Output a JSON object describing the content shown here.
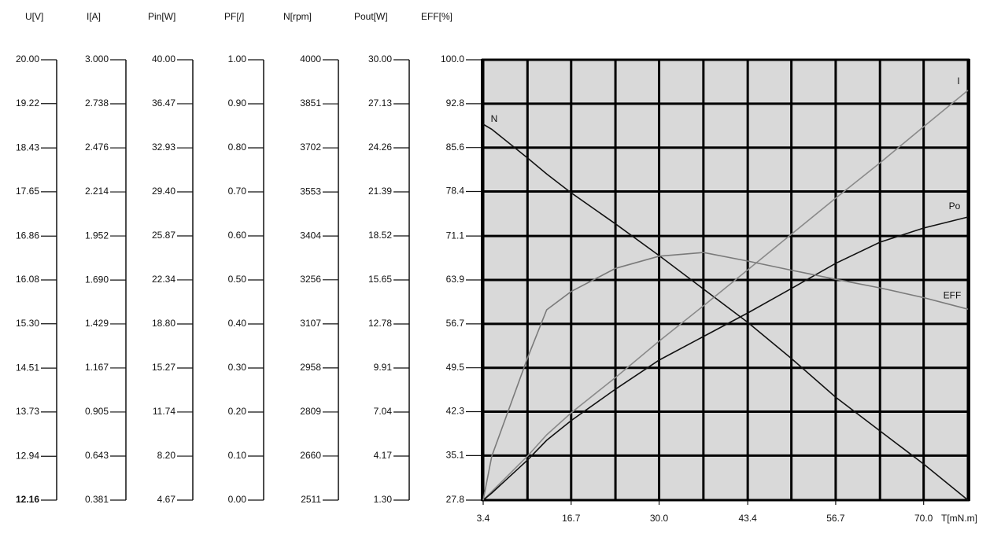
{
  "chart_data": {
    "type": "line",
    "xlabel": "T[mN.m]",
    "grid": true,
    "x": [
      3.4,
      4.7,
      10.1,
      13.0,
      16.7,
      23.4,
      30.0,
      36.7,
      43.4,
      50.0,
      56.7,
      63.4,
      70.0,
      76.7
    ],
    "xlim": [
      3.4,
      76.7
    ],
    "xticks": [
      3.4,
      16.7,
      {
        "value": 30,
        "label": "30.0"
      },
      43.4,
      56.7,
      {
        "value": 70,
        "label": "70.0"
      }
    ],
    "xgrid": [
      10.1,
      23.4,
      36.7,
      50.0,
      63.4,
      76.7
    ],
    "axes": [
      {
        "label": "U[V]",
        "ylim": [
          12.16,
          20
        ],
        "yticks": [
          {
            "value": 20,
            "label": "20.00"
          },
          19.22,
          18.43,
          17.65,
          16.86,
          16.08,
          {
            "value": 15.3,
            "label": "15.30"
          },
          14.51,
          13.73,
          12.94,
          12.16
        ]
      },
      {
        "label": "I[A]",
        "ylim": [
          0.381,
          3
        ],
        "yticks": [
          {
            "value": 3,
            "label": "3.000"
          },
          2.738,
          2.476,
          2.214,
          1.952,
          {
            "value": 1.69,
            "label": "1.690"
          },
          1.429,
          1.167,
          0.905,
          0.643,
          0.381
        ]
      },
      {
        "label": "Pin[W]",
        "ylim": [
          4.67,
          40
        ],
        "yticks": [
          {
            "value": 40,
            "label": "40.00"
          },
          36.47,
          32.93,
          {
            "value": 29.4,
            "label": "29.40"
          },
          25.87,
          22.34,
          {
            "value": 18.8,
            "label": "18.80"
          },
          15.27,
          11.74,
          {
            "value": 8.2,
            "label": "8.20"
          },
          4.67
        ]
      },
      {
        "label": "PF[/]",
        "ylim": [
          0,
          1
        ],
        "yticks": [
          {
            "value": 1,
            "label": "1.00"
          },
          {
            "value": 0.9,
            "label": "0.90"
          },
          {
            "value": 0.8,
            "label": "0.80"
          },
          {
            "value": 0.7,
            "label": "0.70"
          },
          {
            "value": 0.6,
            "label": "0.60"
          },
          {
            "value": 0.5,
            "label": "0.50"
          },
          {
            "value": 0.4,
            "label": "0.40"
          },
          {
            "value": 0.3,
            "label": "0.30"
          },
          {
            "value": 0.2,
            "label": "0.20"
          },
          {
            "value": 0.1,
            "label": "0.10"
          },
          {
            "value": 0,
            "label": "0.00"
          }
        ]
      },
      {
        "label": "N[rpm]",
        "ylim": [
          2511,
          4000
        ],
        "yticks": [
          4000,
          3851,
          3702,
          3553,
          3404,
          3256,
          3107,
          2958,
          2809,
          2660,
          2511
        ]
      },
      {
        "label": "Pout[W]",
        "ylim": [
          1.3,
          30
        ],
        "yticks": [
          {
            "value": 30,
            "label": "30.00"
          },
          27.13,
          24.26,
          21.39,
          18.52,
          15.65,
          12.78,
          9.91,
          7.04,
          4.17,
          {
            "value": 1.3,
            "label": "1.30"
          }
        ]
      },
      {
        "label": "EFF[%]",
        "ylim": [
          27.8,
          100
        ],
        "yticks": [
          {
            "value": 100,
            "label": "100.0"
          },
          92.8,
          85.6,
          78.4,
          71.1,
          63.9,
          56.7,
          49.5,
          42.3,
          35.1,
          27.8
        ]
      }
    ],
    "series": [
      {
        "name": "N",
        "color": "#111111",
        "axis": 4,
        "values": [
          3782,
          3765,
          3668,
          3614,
          3550,
          3445,
          3338,
          3225,
          3112,
          2990,
          2859,
          2745,
          2633,
          2511
        ]
      },
      {
        "name": "I",
        "color": "#8a8a8a",
        "axis": 1,
        "values": [
          0.381,
          0.432,
          0.643,
          0.769,
          0.9,
          1.11,
          1.326,
          1.536,
          1.751,
          1.962,
          2.177,
          2.387,
          2.602,
          2.818
        ]
      },
      {
        "name": "Po",
        "color": "#111111",
        "axis": 5,
        "values": [
          1.3,
          1.76,
          3.91,
          5.2,
          6.48,
          8.53,
          10.42,
          11.96,
          13.5,
          15.09,
          16.73,
          18.11,
          19.03,
          19.75
        ]
      },
      {
        "name": "EFF",
        "color": "#7a7a7a",
        "axis": 6,
        "values": [
          27.8,
          35.0,
          51.1,
          59.0,
          62.0,
          65.8,
          67.8,
          68.4,
          67.0,
          65.5,
          64.0,
          62.6,
          61.0,
          59.1
        ]
      }
    ]
  }
}
